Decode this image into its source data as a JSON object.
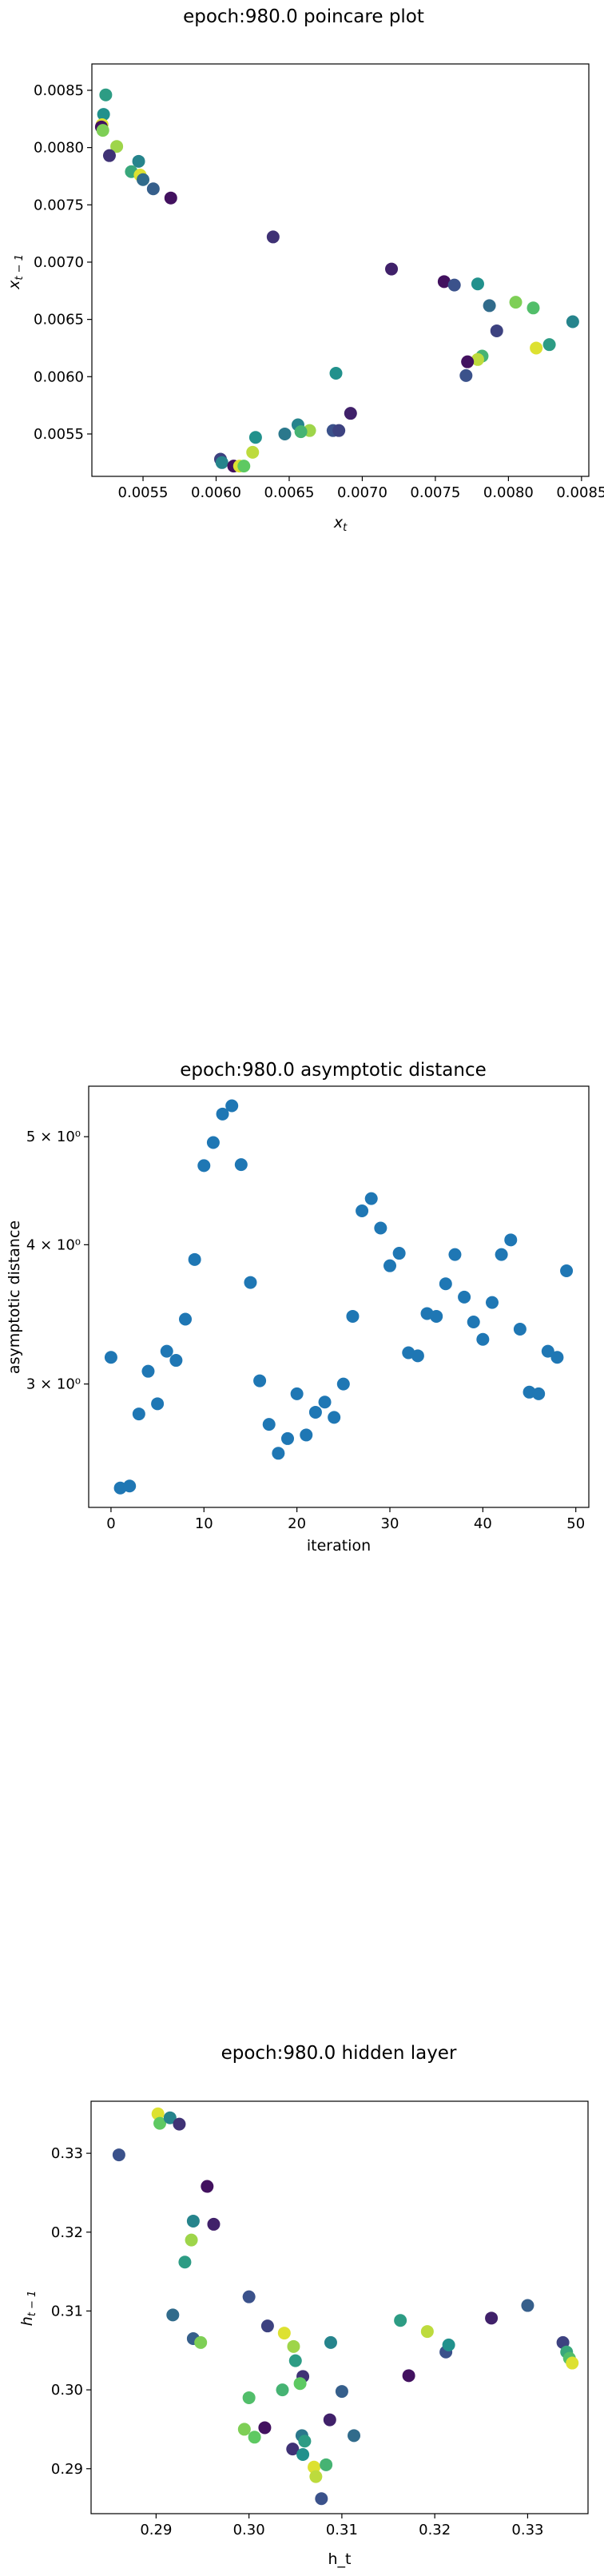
{
  "colors": {
    "single_series": "#1f77b4",
    "colormap": "viridis"
  },
  "chart_data": [
    {
      "type": "scatter",
      "title": "epoch:980.0 poincare plot",
      "xlabel": "x_t",
      "ylabel": "x_{t-1}",
      "xlim": [
        0.00515,
        0.00855
      ],
      "ylim": [
        0.00513,
        0.00873
      ],
      "xticks": [
        "0.0055",
        "0.0060",
        "0.0065",
        "0.0070",
        "0.0075",
        "0.0080",
        "0.0085"
      ],
      "yticks": [
        "0.0055",
        "0.0060",
        "0.0065",
        "0.0070",
        "0.0075",
        "0.0080",
        "0.0085"
      ],
      "colormap": "viridis",
      "points": [
        {
          "x": 0.005245,
          "y": 0.00846,
          "c": 0.55
        },
        {
          "x": 0.00523,
          "y": 0.00829,
          "c": 0.5
        },
        {
          "x": 0.00522,
          "y": 0.0082,
          "c": 0.95
        },
        {
          "x": 0.005215,
          "y": 0.00818,
          "c": 0.05
        },
        {
          "x": 0.005225,
          "y": 0.00815,
          "c": 0.8
        },
        {
          "x": 0.00532,
          "y": 0.00801,
          "c": 0.85
        },
        {
          "x": 0.00527,
          "y": 0.00793,
          "c": 0.15
        },
        {
          "x": 0.00547,
          "y": 0.00788,
          "c": 0.45
        },
        {
          "x": 0.00542,
          "y": 0.00779,
          "c": 0.6
        },
        {
          "x": 0.00548,
          "y": 0.00776,
          "c": 0.95
        },
        {
          "x": 0.0055,
          "y": 0.00772,
          "c": 0.35
        },
        {
          "x": 0.00557,
          "y": 0.00764,
          "c": 0.3
        },
        {
          "x": 0.00569,
          "y": 0.00756,
          "c": 0.05
        },
        {
          "x": 0.00639,
          "y": 0.00722,
          "c": 0.15
        },
        {
          "x": 0.0072,
          "y": 0.00694,
          "c": 0.1
        },
        {
          "x": 0.00756,
          "y": 0.00683,
          "c": 0.05
        },
        {
          "x": 0.00763,
          "y": 0.0068,
          "c": 0.25
        },
        {
          "x": 0.00779,
          "y": 0.00681,
          "c": 0.5
        },
        {
          "x": 0.00787,
          "y": 0.00662,
          "c": 0.35
        },
        {
          "x": 0.00805,
          "y": 0.00665,
          "c": 0.8
        },
        {
          "x": 0.00817,
          "y": 0.0066,
          "c": 0.7
        },
        {
          "x": 0.00844,
          "y": 0.00648,
          "c": 0.45
        },
        {
          "x": 0.00792,
          "y": 0.0064,
          "c": 0.2
        },
        {
          "x": 0.00828,
          "y": 0.00628,
          "c": 0.55
        },
        {
          "x": 0.00819,
          "y": 0.00625,
          "c": 0.95
        },
        {
          "x": 0.00782,
          "y": 0.00618,
          "c": 0.65
        },
        {
          "x": 0.00779,
          "y": 0.00615,
          "c": 0.9
        },
        {
          "x": 0.00772,
          "y": 0.00613,
          "c": 0.05
        },
        {
          "x": 0.00771,
          "y": 0.00601,
          "c": 0.25
        },
        {
          "x": 0.00682,
          "y": 0.00603,
          "c": 0.5
        },
        {
          "x": 0.00692,
          "y": 0.00568,
          "c": 0.1
        },
        {
          "x": 0.00656,
          "y": 0.00558,
          "c": 0.45
        },
        {
          "x": 0.00664,
          "y": 0.00553,
          "c": 0.85
        },
        {
          "x": 0.00658,
          "y": 0.00552,
          "c": 0.65
        },
        {
          "x": 0.0068,
          "y": 0.00553,
          "c": 0.25
        },
        {
          "x": 0.00684,
          "y": 0.00553,
          "c": 0.2
        },
        {
          "x": 0.00647,
          "y": 0.0055,
          "c": 0.4
        },
        {
          "x": 0.00627,
          "y": 0.00547,
          "c": 0.5
        },
        {
          "x": 0.00625,
          "y": 0.00534,
          "c": 0.9
        },
        {
          "x": 0.00603,
          "y": 0.00528,
          "c": 0.2
        },
        {
          "x": 0.00604,
          "y": 0.00525,
          "c": 0.45
        },
        {
          "x": 0.00612,
          "y": 0.00522,
          "c": 0.05
        },
        {
          "x": 0.00616,
          "y": 0.00522,
          "c": 0.95
        },
        {
          "x": 0.00619,
          "y": 0.00522,
          "c": 0.75
        }
      ]
    },
    {
      "type": "scatter",
      "title": "epoch:980.0 asymptotic distance",
      "xlabel": "iteration",
      "ylabel": "asymptotic distance",
      "xlim": [
        -2.4,
        51.4
      ],
      "y_scale": "log",
      "ylim": [
        2.325,
        5.55
      ],
      "xticks": [
        0,
        10,
        20,
        30,
        40,
        50
      ],
      "yticks": [
        {
          "value": 3,
          "label": "3 × 10⁰"
        },
        {
          "value": 4,
          "label": "4 × 10⁰"
        },
        {
          "value": 5,
          "label": "5 × 10⁰"
        }
      ],
      "x": [
        0,
        1,
        2,
        3,
        4,
        5,
        6,
        7,
        8,
        9,
        10,
        11,
        12,
        13,
        14,
        15,
        16,
        17,
        18,
        19,
        20,
        21,
        22,
        23,
        24,
        25,
        26,
        27,
        28,
        29,
        30,
        31,
        32,
        33,
        34,
        35,
        36,
        37,
        38,
        39,
        40,
        41,
        42,
        43,
        44,
        45,
        46,
        47,
        48,
        49
      ],
      "y": [
        3.17,
        2.42,
        2.43,
        2.82,
        3.08,
        2.88,
        3.21,
        3.15,
        3.43,
        3.88,
        4.71,
        4.94,
        5.24,
        5.33,
        4.72,
        3.7,
        3.02,
        2.76,
        2.6,
        2.68,
        2.94,
        2.7,
        2.83,
        2.89,
        2.8,
        3.0,
        3.45,
        4.29,
        4.4,
        4.14,
        3.83,
        3.93,
        3.2,
        3.18,
        3.47,
        3.45,
        3.69,
        3.92,
        3.59,
        3.41,
        3.29,
        3.55,
        3.92,
        4.04,
        3.36,
        2.95,
        2.94,
        3.21,
        3.17,
        3.79
      ]
    },
    {
      "type": "scatter",
      "title": "epoch:980.0 hidden layer",
      "xlabel": "h_t",
      "ylabel": "h_{t-1}",
      "xlim": [
        0.283,
        0.3365
      ],
      "ylim": [
        0.2843,
        0.3366
      ],
      "xticks": [
        "0.29",
        "0.30",
        "0.31",
        "0.32",
        "0.33"
      ],
      "yticks": [
        "0.29",
        "0.30",
        "0.31",
        "0.32",
        "0.33"
      ],
      "colormap": "viridis",
      "points": [
        {
          "x": 0.286,
          "y": 0.3298,
          "c": 0.25
        },
        {
          "x": 0.2902,
          "y": 0.335,
          "c": 0.95
        },
        {
          "x": 0.2904,
          "y": 0.3338,
          "c": 0.75
        },
        {
          "x": 0.2915,
          "y": 0.3345,
          "c": 0.45
        },
        {
          "x": 0.2925,
          "y": 0.3337,
          "c": 0.15
        },
        {
          "x": 0.2955,
          "y": 0.3258,
          "c": 0.05
        },
        {
          "x": 0.294,
          "y": 0.3214,
          "c": 0.45
        },
        {
          "x": 0.2962,
          "y": 0.321,
          "c": 0.1
        },
        {
          "x": 0.2938,
          "y": 0.319,
          "c": 0.85
        },
        {
          "x": 0.2931,
          "y": 0.3162,
          "c": 0.55
        },
        {
          "x": 0.2918,
          "y": 0.3095,
          "c": 0.35
        },
        {
          "x": 0.294,
          "y": 0.3065,
          "c": 0.3
        },
        {
          "x": 0.2948,
          "y": 0.306,
          "c": 0.8
        },
        {
          "x": 0.3,
          "y": 0.3118,
          "c": 0.25
        },
        {
          "x": 0.302,
          "y": 0.3081,
          "c": 0.2
        },
        {
          "x": 0.3038,
          "y": 0.3072,
          "c": 0.95
        },
        {
          "x": 0.3048,
          "y": 0.3055,
          "c": 0.85
        },
        {
          "x": 0.305,
          "y": 0.3037,
          "c": 0.55
        },
        {
          "x": 0.3058,
          "y": 0.3017,
          "c": 0.15
        },
        {
          "x": 0.3055,
          "y": 0.3008,
          "c": 0.75
        },
        {
          "x": 0.3036,
          "y": 0.3,
          "c": 0.65
        },
        {
          "x": 0.3,
          "y": 0.299,
          "c": 0.7
        },
        {
          "x": 0.3088,
          "y": 0.306,
          "c": 0.45
        },
        {
          "x": 0.31,
          "y": 0.2998,
          "c": 0.3
        },
        {
          "x": 0.3163,
          "y": 0.3088,
          "c": 0.55
        },
        {
          "x": 0.3192,
          "y": 0.3074,
          "c": 0.9
        },
        {
          "x": 0.3172,
          "y": 0.3018,
          "c": 0.05
        },
        {
          "x": 0.3212,
          "y": 0.3048,
          "c": 0.25
        },
        {
          "x": 0.3215,
          "y": 0.3057,
          "c": 0.5
        },
        {
          "x": 0.3261,
          "y": 0.3091,
          "c": 0.1
        },
        {
          "x": 0.33,
          "y": 0.3107,
          "c": 0.3
        },
        {
          "x": 0.3338,
          "y": 0.306,
          "c": 0.2
        },
        {
          "x": 0.3342,
          "y": 0.3048,
          "c": 0.6
        },
        {
          "x": 0.3345,
          "y": 0.304,
          "c": 0.7
        },
        {
          "x": 0.3348,
          "y": 0.3034,
          "c": 0.95
        },
        {
          "x": 0.2995,
          "y": 0.295,
          "c": 0.8
        },
        {
          "x": 0.3006,
          "y": 0.294,
          "c": 0.75
        },
        {
          "x": 0.3017,
          "y": 0.2952,
          "c": 0.05
        },
        {
          "x": 0.3047,
          "y": 0.2925,
          "c": 0.15
        },
        {
          "x": 0.3057,
          "y": 0.2942,
          "c": 0.4
        },
        {
          "x": 0.306,
          "y": 0.2935,
          "c": 0.55
        },
        {
          "x": 0.3058,
          "y": 0.2918,
          "c": 0.5
        },
        {
          "x": 0.307,
          "y": 0.2902,
          "c": 0.95
        },
        {
          "x": 0.3072,
          "y": 0.289,
          "c": 0.9
        },
        {
          "x": 0.3083,
          "y": 0.2905,
          "c": 0.65
        },
        {
          "x": 0.3087,
          "y": 0.2962,
          "c": 0.1
        },
        {
          "x": 0.3113,
          "y": 0.2942,
          "c": 0.35
        },
        {
          "x": 0.3078,
          "y": 0.2862,
          "c": 0.25
        }
      ]
    }
  ]
}
